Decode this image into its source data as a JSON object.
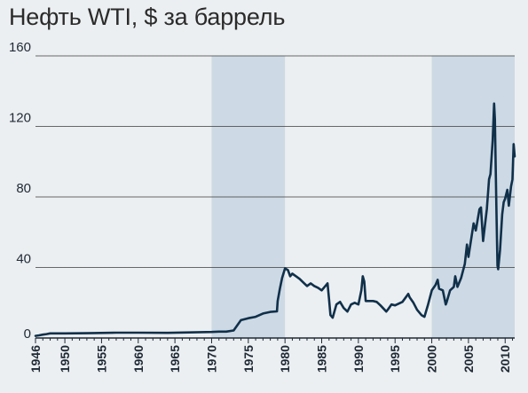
{
  "chart_data": {
    "type": "line",
    "title": "Нефть WTI, $ за баррель",
    "xlabel": "",
    "ylabel": "",
    "xlim": [
      1946,
      2011.3
    ],
    "ylim": [
      0,
      160
    ],
    "yticks": [
      0,
      40,
      80,
      120,
      160
    ],
    "xticks": [
      1946,
      1950,
      1955,
      1960,
      1965,
      1970,
      1975,
      1980,
      1985,
      1990,
      1995,
      2000,
      2005,
      2010
    ],
    "grid": "horizontal",
    "shaded_periods": [
      [
        1970,
        1980
      ],
      [
        2000,
        2011.3
      ]
    ],
    "colors": {
      "line": "#10304a",
      "shade": "#cdd9e4",
      "grid": "#3a3a3a",
      "background": "#eceff1"
    },
    "series": [
      {
        "values": [
          [
            1946,
            1.2
          ],
          [
            1946.5,
            1.5
          ],
          [
            1947,
            1.9
          ],
          [
            1947.5,
            2.2
          ],
          [
            1948,
            2.6
          ],
          [
            1949,
            2.6
          ],
          [
            1950,
            2.6
          ],
          [
            1953,
            2.7
          ],
          [
            1954,
            2.8
          ],
          [
            1957,
            3.0
          ],
          [
            1960,
            3.0
          ],
          [
            1964,
            2.9
          ],
          [
            1970,
            3.4
          ],
          [
            1971,
            3.6
          ],
          [
            1972,
            3.6
          ],
          [
            1973,
            4.3
          ],
          [
            1974.0,
            10.1
          ],
          [
            1975,
            11.2
          ],
          [
            1976,
            12.0
          ],
          [
            1977,
            13.9
          ],
          [
            1978,
            14.8
          ],
          [
            1978.9,
            15.1
          ],
          [
            1979.0,
            21
          ],
          [
            1979.3,
            28
          ],
          [
            1979.6,
            34
          ],
          [
            1980,
            39.5
          ],
          [
            1980.4,
            38.5
          ],
          [
            1980.7,
            35
          ],
          [
            1981,
            36.5
          ],
          [
            1981.5,
            35
          ],
          [
            1982,
            33.5
          ],
          [
            1982.5,
            31.5
          ],
          [
            1983,
            29.5
          ],
          [
            1983.5,
            31
          ],
          [
            1984,
            29.5
          ],
          [
            1984.5,
            28.5
          ],
          [
            1985,
            27
          ],
          [
            1985.5,
            29.5
          ],
          [
            1985.8,
            31
          ],
          [
            1986,
            22
          ],
          [
            1986.2,
            13
          ],
          [
            1986.5,
            11.5
          ],
          [
            1986.8,
            16
          ],
          [
            1987,
            19
          ],
          [
            1987.5,
            20.5
          ],
          [
            1988,
            17
          ],
          [
            1988.5,
            15
          ],
          [
            1989,
            19
          ],
          [
            1989.5,
            20
          ],
          [
            1990,
            19
          ],
          [
            1990.4,
            27
          ],
          [
            1990.6,
            35
          ],
          [
            1990.8,
            32
          ],
          [
            1991,
            21
          ],
          [
            1991.5,
            21
          ],
          [
            1992,
            21
          ],
          [
            1992.5,
            20.5
          ],
          [
            1993,
            18.5
          ],
          [
            1993.8,
            15
          ],
          [
            1994,
            16
          ],
          [
            1994.5,
            19
          ],
          [
            1995,
            18.5
          ],
          [
            1996,
            20.5
          ],
          [
            1996.8,
            25
          ],
          [
            1997,
            23
          ],
          [
            1997.5,
            20
          ],
          [
            1998,
            16
          ],
          [
            1998.6,
            13
          ],
          [
            1999,
            12
          ],
          [
            1999.5,
            19
          ],
          [
            2000,
            27
          ],
          [
            2000.5,
            30
          ],
          [
            2000.8,
            33
          ],
          [
            2001,
            28
          ],
          [
            2001.5,
            27
          ],
          [
            2001.9,
            19
          ],
          [
            2002,
            20
          ],
          [
            2002.5,
            27
          ],
          [
            2003,
            29
          ],
          [
            2003.2,
            35
          ],
          [
            2003.5,
            29
          ],
          [
            2004,
            34
          ],
          [
            2004.5,
            42
          ],
          [
            2004.8,
            53
          ],
          [
            2005,
            46
          ],
          [
            2005.7,
            65
          ],
          [
            2006,
            61
          ],
          [
            2006.5,
            73
          ],
          [
            2006.7,
            74
          ],
          [
            2007,
            55
          ],
          [
            2007.5,
            73
          ],
          [
            2007.8,
            90
          ],
          [
            2008,
            93
          ],
          [
            2008.3,
            112
          ],
          [
            2008.5,
            133
          ],
          [
            2008.6,
            124
          ],
          [
            2008.8,
            76
          ],
          [
            2008.95,
            41
          ],
          [
            2009.05,
            39
          ],
          [
            2009.3,
            50
          ],
          [
            2009.6,
            70
          ],
          [
            2009.8,
            77
          ],
          [
            2010,
            79
          ],
          [
            2010.3,
            84
          ],
          [
            2010.5,
            75
          ],
          [
            2010.8,
            86
          ],
          [
            2011,
            90
          ],
          [
            2011.15,
            110
          ],
          [
            2011.3,
            103
          ]
        ]
      }
    ]
  }
}
